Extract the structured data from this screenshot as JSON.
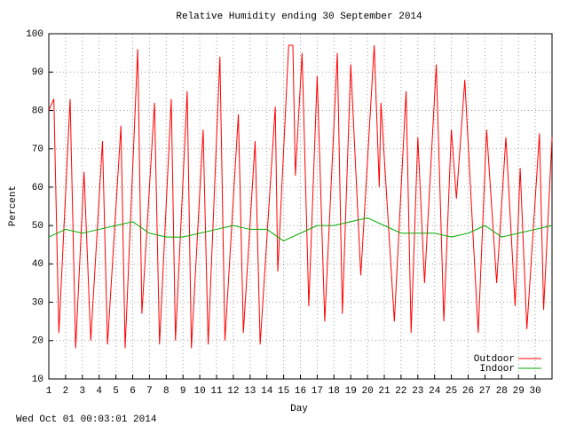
{
  "chart_data": {
    "type": "line",
    "title": "Relative Humidity ending 30 September 2014",
    "xlabel": "Day",
    "ylabel": "Percent",
    "footer": "Wed Oct 01 00:03:01 2014",
    "xlim": [
      1,
      31
    ],
    "ylim": [
      10,
      100
    ],
    "xticks": [
      1,
      2,
      3,
      4,
      5,
      6,
      7,
      8,
      9,
      10,
      11,
      12,
      13,
      14,
      15,
      16,
      17,
      18,
      19,
      20,
      21,
      22,
      23,
      24,
      25,
      26,
      27,
      28,
      29,
      30
    ],
    "yticks": [
      10,
      20,
      30,
      40,
      50,
      60,
      70,
      80,
      90,
      100
    ],
    "grid": true,
    "legend": "lower right",
    "series": [
      {
        "name": "Outdoor",
        "color": "#ff0000",
        "x": [
          1.0,
          1.3,
          1.6,
          2.27,
          2.6,
          3.1,
          3.5,
          4.2,
          4.5,
          5.3,
          5.55,
          6.3,
          6.55,
          7.3,
          7.6,
          8.3,
          8.55,
          9.25,
          9.5,
          10.2,
          10.5,
          11.2,
          11.5,
          12.3,
          12.6,
          13.3,
          13.6,
          14.5,
          14.65,
          15.3,
          15.55,
          15.7,
          16.1,
          16.5,
          17.0,
          17.45,
          18.2,
          18.5,
          19.0,
          19.6,
          20.4,
          20.7,
          20.8,
          21.6,
          22.3,
          22.6,
          23.0,
          23.4,
          24.1,
          24.55,
          25.0,
          25.3,
          25.8,
          26.6,
          27.1,
          27.7,
          28.25,
          28.8,
          29.1,
          29.5,
          30.25,
          30.5,
          31.0
        ],
        "values": [
          80,
          83,
          22,
          83,
          18,
          64,
          20,
          72,
          19,
          76,
          18,
          96,
          27,
          82,
          19,
          83,
          20,
          85,
          18,
          75,
          19,
          94,
          20,
          79,
          22,
          72,
          19,
          81,
          38,
          97,
          97,
          63,
          95,
          29,
          89,
          25,
          95,
          27,
          92,
          37,
          97,
          60,
          82,
          25,
          85,
          22,
          73,
          35,
          92,
          25,
          75,
          57,
          88,
          22,
          75,
          35,
          73,
          29,
          65,
          23,
          74,
          28,
          73
        ]
      },
      {
        "name": "Indoor",
        "color": "#00aa00",
        "x": [
          1,
          2,
          3,
          4,
          5,
          6,
          7,
          8,
          9,
          10,
          11,
          12,
          13,
          14,
          15,
          16,
          17,
          18,
          19,
          20,
          21,
          22,
          23,
          24,
          25,
          26,
          27,
          28,
          29,
          30,
          31
        ],
        "values": [
          47,
          49,
          48,
          49,
          50,
          51,
          48,
          47,
          47,
          48,
          49,
          50,
          49,
          49,
          46,
          48,
          50,
          50,
          51,
          52,
          50,
          48,
          48,
          48,
          47,
          48,
          50,
          47,
          48,
          49,
          50
        ]
      }
    ]
  }
}
